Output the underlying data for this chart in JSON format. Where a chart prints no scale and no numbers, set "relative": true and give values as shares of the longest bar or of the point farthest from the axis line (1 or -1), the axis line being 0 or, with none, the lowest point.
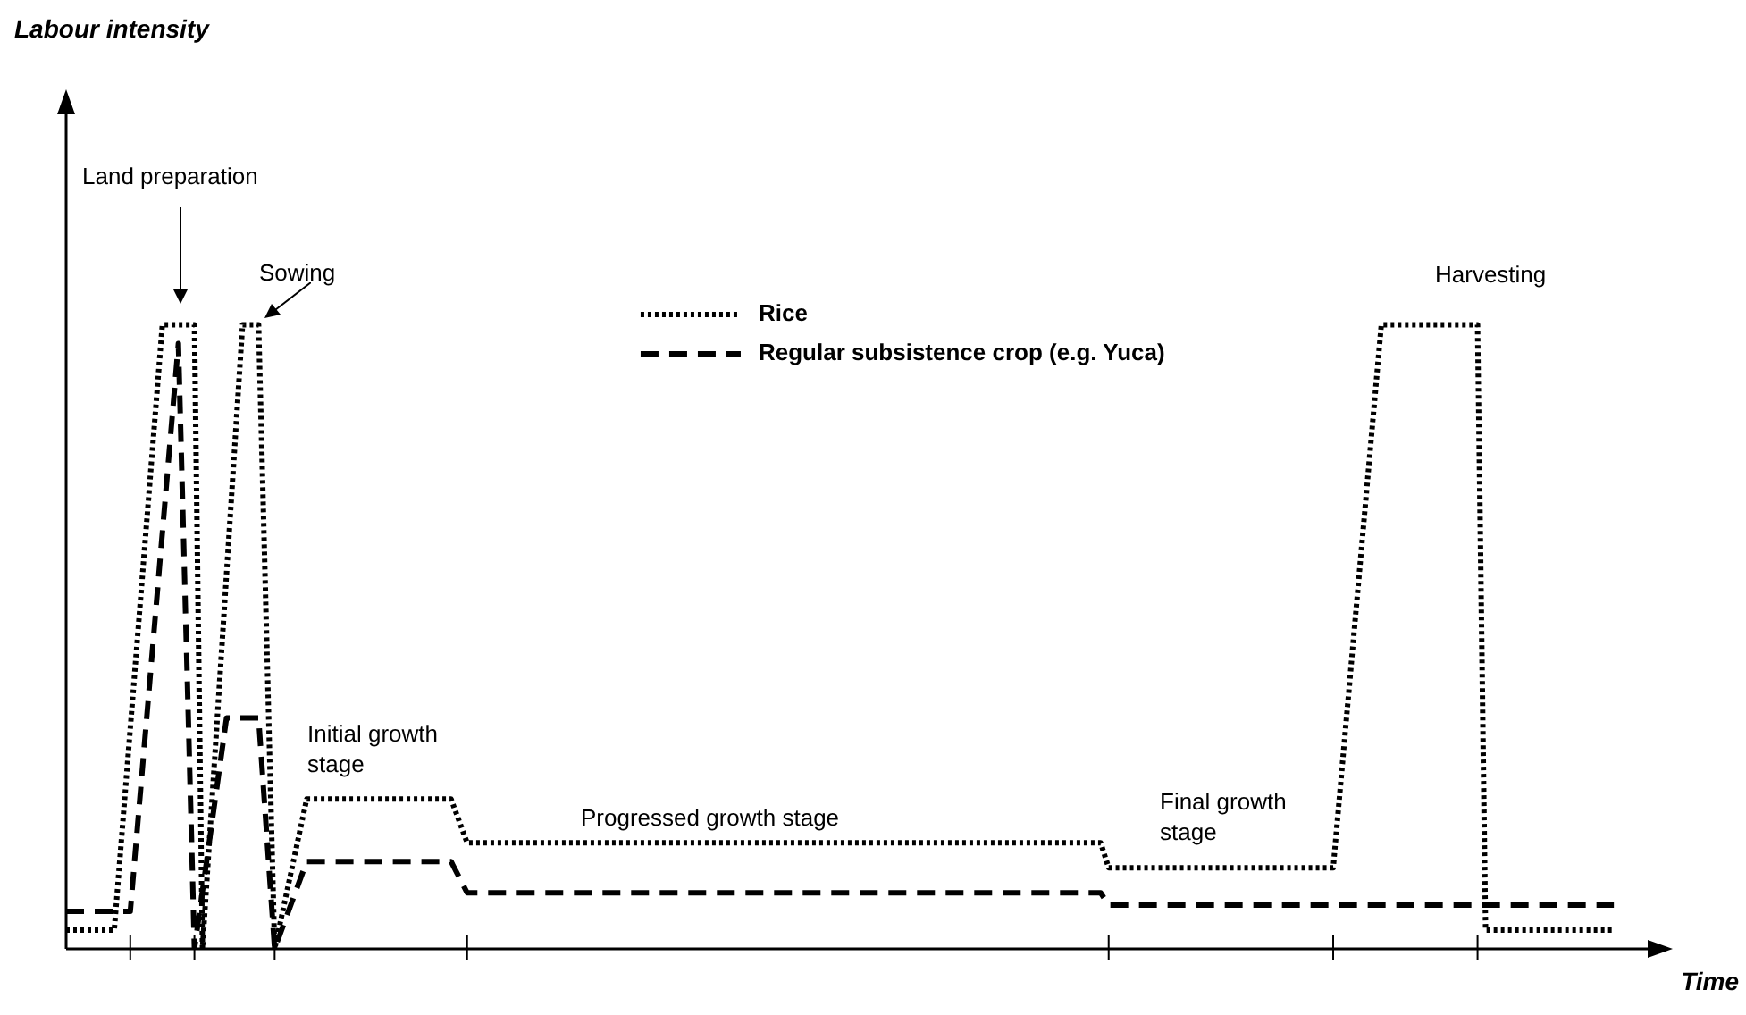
{
  "chart_data": {
    "type": "line",
    "relative": true,
    "xlabel": "Time",
    "legend": "top",
    "marker": "none",
    "categories": [
      null,
      null,
      null,
      null,
      null,
      null,
      null,
      null,
      null,
      null,
      null,
      null,
      null,
      null,
      null,
      null,
      null,
      null,
      null,
      null,
      null,
      null,
      null,
      null,
      null,
      null,
      null,
      null,
      null,
      null,
      null,
      null,
      null,
      null,
      null,
      null,
      null,
      null,
      null,
      null,
      null,
      null,
      null,
      null,
      null,
      null,
      null,
      null,
      null,
      null,
      null,
      null,
      null,
      null,
      null,
      null,
      null,
      null,
      null,
      null,
      null,
      null,
      null,
      null,
      null,
      null,
      null,
      null,
      null,
      null,
      null,
      null,
      null,
      null,
      null,
      null,
      null,
      null,
      null,
      null,
      null,
      null,
      null,
      null,
      null,
      null,
      null,
      null,
      null,
      null,
      null,
      null,
      null,
      null,
      null,
      null,
      null,
      null,
      null,
      null,
      null,
      null,
      null,
      null,
      null,
      null,
      null,
      null,
      null,
      null,
      null,
      null,
      null,
      null,
      null,
      null,
      null,
      null,
      null,
      null,
      null,
      null,
      null,
      null,
      null,
      null,
      null,
      null,
      null,
      null,
      null,
      null,
      null,
      null,
      null,
      null,
      null,
      null,
      null,
      null,
      null,
      null,
      null,
      null,
      null,
      null,
      null,
      null,
      null,
      null,
      null,
      null,
      null,
      null,
      null,
      null,
      null,
      null,
      null,
      null,
      null,
      null,
      null,
      null,
      null,
      null,
      null,
      null,
      null,
      null,
      null,
      null,
      null,
      null,
      null,
      null,
      null,
      null,
      null,
      null,
      null,
      null,
      null,
      null,
      null,
      null,
      null,
      null,
      null,
      null,
      null,
      null,
      null,
      null,
      null,
      null,
      null,
      null,
      null,
      null
    ],
    "series": [
      {
        "name": "Rice",
        "color": "#000000",
        "line_style": "dotted",
        "values": [
          0.03,
          null,
          null,
          null,
          null,
          null,
          0.03,
          null,
          null,
          null,
          null,
          null,
          1,
          null,
          null,
          null,
          1,
          0,
          null,
          null,
          null,
          null,
          1,
          null,
          1,
          null,
          0,
          null,
          null,
          null,
          0.24,
          null,
          null,
          null,
          null,
          null,
          null,
          null,
          null,
          null,
          null,
          null,
          null,
          null,
          null,
          null,
          null,
          null,
          0.24,
          null,
          0.17,
          null,
          null,
          null,
          null,
          null,
          null,
          null,
          null,
          null,
          null,
          null,
          null,
          null,
          null,
          null,
          null,
          null,
          null,
          null,
          null,
          null,
          null,
          null,
          null,
          null,
          null,
          null,
          null,
          null,
          null,
          null,
          null,
          null,
          null,
          null,
          null,
          null,
          null,
          null,
          null,
          null,
          null,
          null,
          null,
          null,
          null,
          null,
          null,
          null,
          null,
          null,
          null,
          null,
          null,
          null,
          null,
          null,
          null,
          null,
          null,
          null,
          null,
          null,
          null,
          null,
          null,
          null,
          null,
          null,
          null,
          null,
          null,
          null,
          null,
          null,
          null,
          null,
          null,
          0.17,
          0.13,
          null,
          null,
          null,
          null,
          null,
          null,
          null,
          null,
          null,
          null,
          null,
          null,
          null,
          null,
          null,
          null,
          null,
          null,
          null,
          null,
          null,
          null,
          null,
          null,
          null,
          null,
          null,
          0.13,
          null,
          null,
          null,
          null,
          null,
          1,
          null,
          null,
          null,
          null,
          null,
          null,
          null,
          null,
          null,
          null,
          null,
          1,
          0.03,
          null,
          null,
          null,
          null,
          null,
          null,
          null,
          null,
          null,
          null,
          null,
          null,
          null,
          null,
          null,
          0.03,
          null,
          null,
          null,
          null,
          null,
          null
        ]
      },
      {
        "name": "Regular subsistence crop (e.g. Yuca)",
        "color": "#000000",
        "line_style": "dashed",
        "values": [
          0.06,
          null,
          null,
          null,
          null,
          null,
          null,
          null,
          0.06,
          null,
          null,
          null,
          null,
          null,
          0.97,
          null,
          0,
          null,
          null,
          null,
          0.37,
          null,
          null,
          null,
          0.37,
          null,
          0,
          null,
          null,
          null,
          0.14,
          null,
          null,
          null,
          null,
          null,
          null,
          null,
          null,
          null,
          null,
          null,
          null,
          null,
          null,
          null,
          null,
          null,
          0.14,
          null,
          0.09,
          null,
          null,
          null,
          null,
          null,
          null,
          null,
          null,
          null,
          null,
          null,
          null,
          null,
          null,
          null,
          null,
          null,
          null,
          null,
          null,
          null,
          null,
          null,
          null,
          null,
          null,
          null,
          null,
          null,
          null,
          null,
          null,
          null,
          null,
          null,
          null,
          null,
          null,
          null,
          null,
          null,
          null,
          null,
          null,
          null,
          null,
          null,
          null,
          null,
          null,
          null,
          null,
          null,
          null,
          null,
          null,
          null,
          null,
          null,
          null,
          null,
          null,
          null,
          null,
          null,
          null,
          null,
          null,
          null,
          null,
          null,
          null,
          null,
          null,
          null,
          null,
          null,
          null,
          0.09,
          0.07,
          null,
          null,
          null,
          null,
          null,
          null,
          null,
          null,
          null,
          null,
          null,
          null,
          null,
          null,
          null,
          null,
          null,
          null,
          null,
          null,
          null,
          null,
          null,
          null,
          null,
          null,
          null,
          null,
          null,
          null,
          null,
          null,
          null,
          null,
          null,
          null,
          null,
          null,
          null,
          null,
          null,
          null,
          null,
          null,
          null,
          null,
          null,
          null,
          null,
          null,
          null,
          null,
          null,
          null,
          null,
          null,
          null,
          null,
          null,
          null,
          null,
          null,
          0.07,
          null,
          null,
          null,
          null,
          null,
          null
        ]
      }
    ],
    "annotations": [
      "Land preparation",
      "Sowing",
      "Initial growth stage",
      "Progressed growth stage",
      "Final growth stage",
      "Harvesting",
      "Labour intensity"
    ]
  }
}
